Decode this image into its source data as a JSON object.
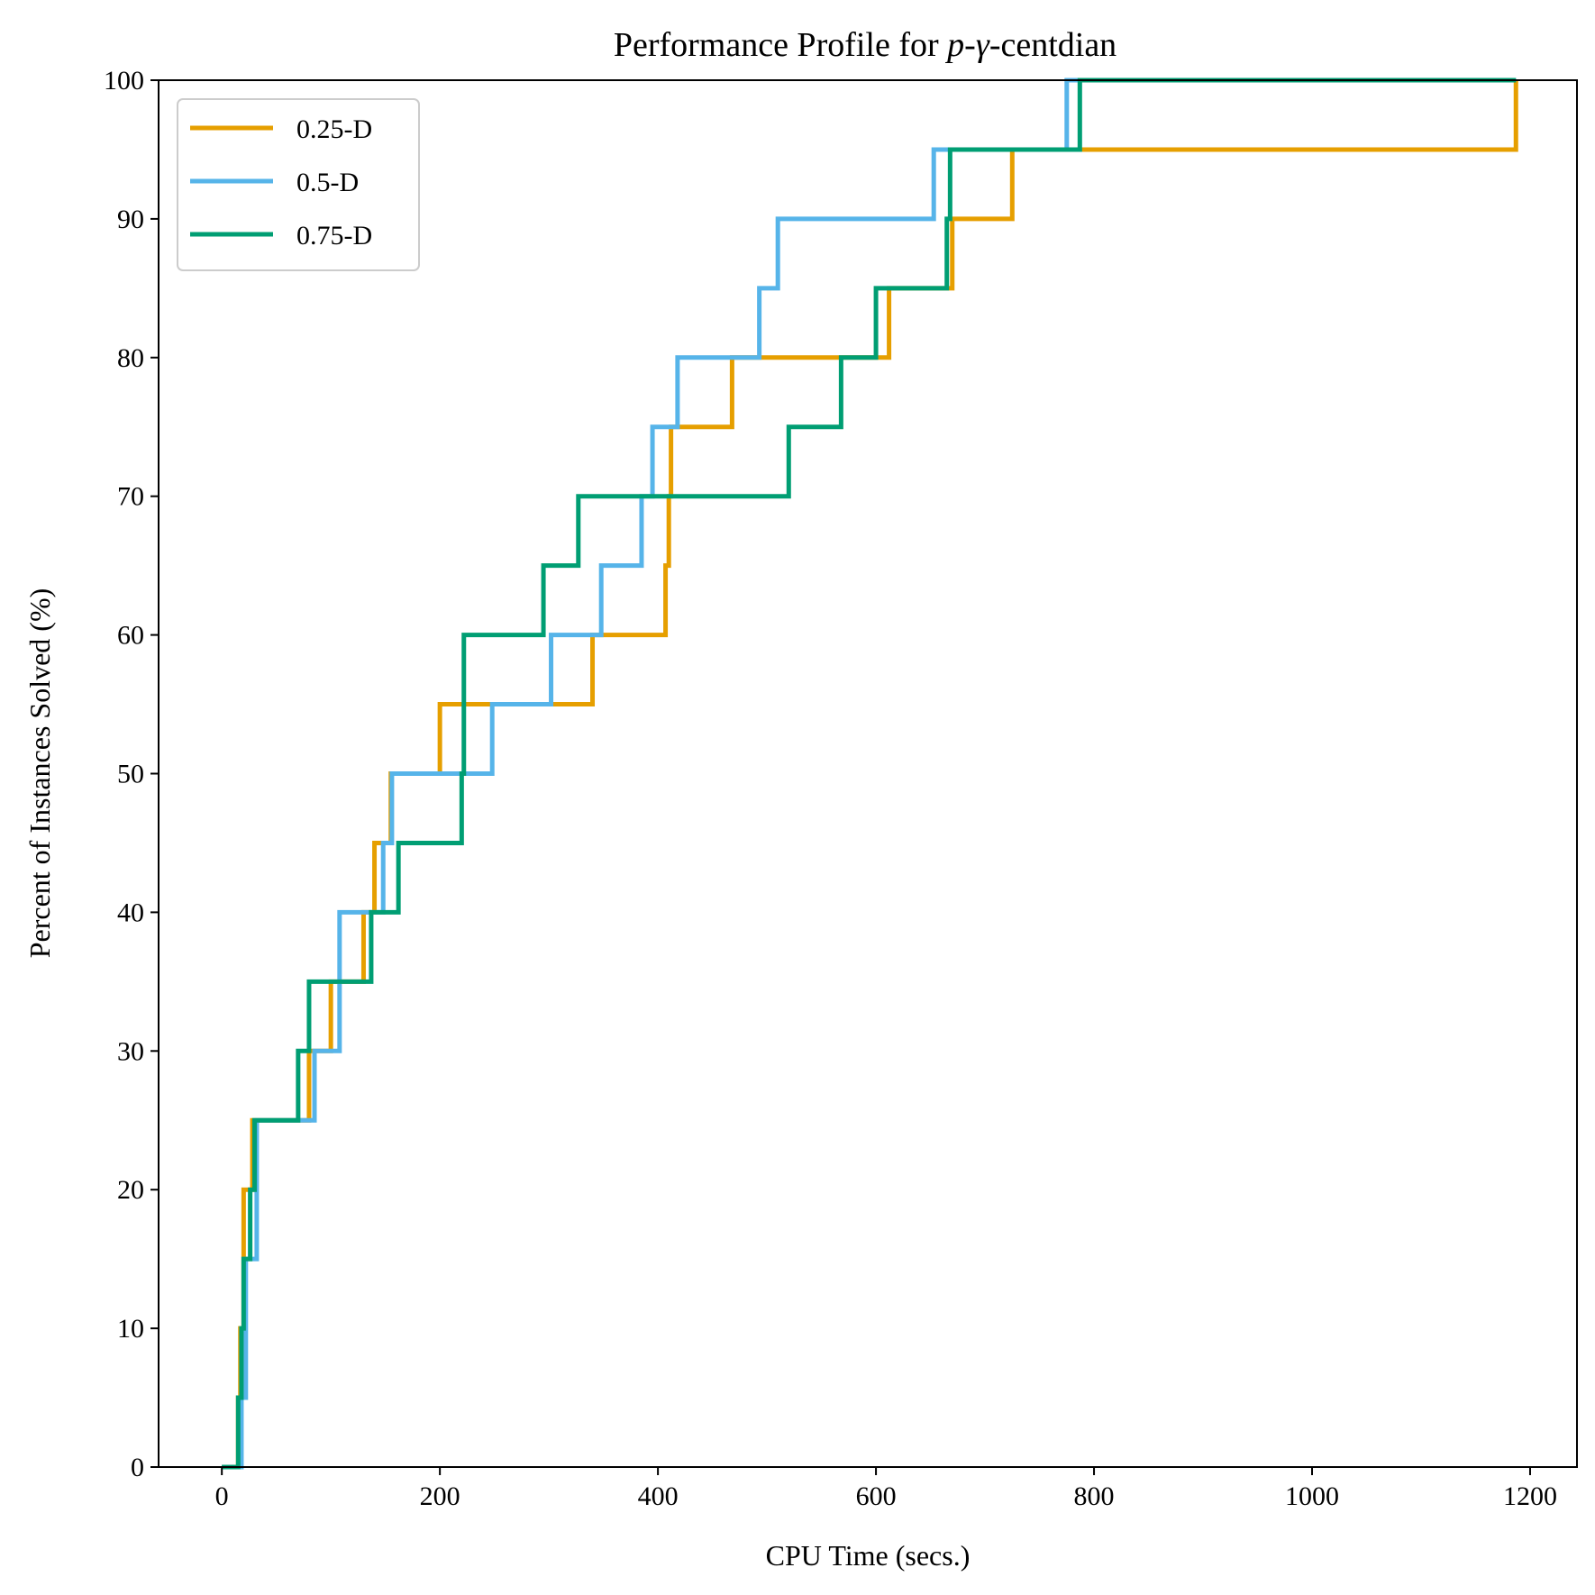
{
  "chart_data": {
    "type": "line",
    "step": true,
    "title_prefix": "Performance Profile for ",
    "title_p": "p",
    "title_dash": "-",
    "title_gamma": "γ",
    "title_suffix": "-centdian",
    "xlabel": "CPU Time (secs.)",
    "ylabel": "Percent of Instances Solved (%)",
    "xlim": [
      -58,
      1243
    ],
    "ylim": [
      0,
      100
    ],
    "xticks": [
      0,
      200,
      400,
      600,
      800,
      1000,
      1200
    ],
    "yticks": [
      0,
      10,
      20,
      30,
      40,
      50,
      60,
      70,
      80,
      90,
      100
    ],
    "legend_position": "upper-left",
    "series": [
      {
        "name": "0.25-D",
        "color": "#E69F00",
        "x": [
          0,
          15,
          17,
          20,
          28,
          30,
          80,
          100,
          130,
          140,
          155,
          200,
          223,
          340,
          407,
          410,
          412,
          468,
          575,
          612,
          667,
          670,
          725,
          790,
          1187
        ],
        "y": [
          0,
          5,
          10,
          20,
          25,
          25,
          30,
          35,
          40,
          45,
          50,
          55,
          55,
          60,
          65,
          70,
          75,
          80,
          80,
          85,
          85,
          90,
          95,
          95,
          100
        ]
      },
      {
        "name": "0.5-D",
        "color": "#56B4E9",
        "x": [
          0,
          18,
          22,
          32,
          85,
          108,
          148,
          156,
          248,
          302,
          348,
          385,
          395,
          418,
          493,
          510,
          653,
          775,
          780,
          1187
        ],
        "y": [
          0,
          5,
          15,
          25,
          30,
          40,
          45,
          50,
          55,
          60,
          65,
          70,
          75,
          80,
          85,
          90,
          95,
          100,
          100,
          100
        ]
      },
      {
        "name": "0.75-D",
        "color": "#009E73",
        "x": [
          0,
          15,
          18,
          20,
          26,
          30,
          70,
          80,
          137,
          162,
          220,
          222,
          295,
          327,
          520,
          568,
          600,
          665,
          668,
          787,
          1187
        ],
        "y": [
          0,
          5,
          10,
          15,
          20,
          25,
          30,
          35,
          40,
          45,
          50,
          60,
          65,
          70,
          75,
          80,
          85,
          90,
          95,
          100,
          100
        ]
      }
    ]
  }
}
